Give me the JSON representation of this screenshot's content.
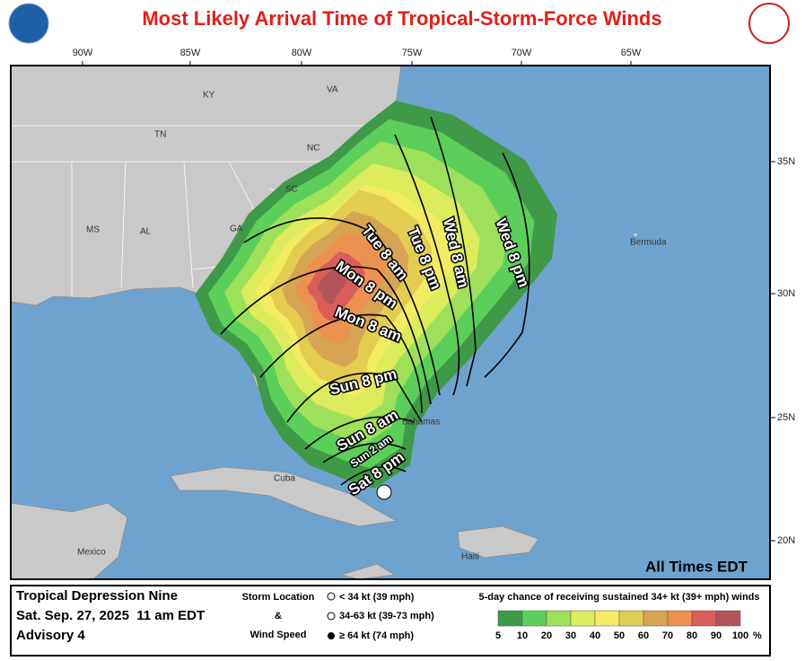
{
  "header": {
    "title": "Most Likely Arrival Time of Tropical-Storm-Force Winds"
  },
  "map": {
    "longitude_labels": [
      "90W",
      "85W",
      "80W",
      "75W",
      "70W",
      "65W"
    ],
    "latitude_labels": [
      "35N",
      "30N",
      "25N",
      "20N"
    ],
    "state_labels": [
      "KY",
      "VA",
      "TN",
      "NC",
      "SC",
      "GA",
      "MS",
      "AL"
    ],
    "place_labels": [
      "Bermuda",
      "Bahamas",
      "Cuba",
      "Mexico",
      "Haiti"
    ],
    "arrival_time_labels": [
      "Wed 8 pm",
      "Wed 8 am",
      "Tue 8 pm",
      "Tue 8 am",
      "Mon 8 pm",
      "Mon 8 am",
      "Sun 8 pm",
      "Sun 8 am",
      "Sun 2 am",
      "Sat 8 pm"
    ],
    "time_zone_note": "All Times EDT"
  },
  "legend": {
    "storm_name": "Tropical Depression Nine",
    "issued": "Sat. Sep. 27, 2025  11 am EDT",
    "advisory": "Advisory 4",
    "storm_location_title": "Storm Location",
    "ampersand": "&",
    "wind_speed_title": "Wind Speed",
    "wind_classes": [
      "< 34 kt (39 mph)",
      "34-63 kt (39-73 mph)",
      "≥ 64 kt (74 mph)"
    ],
    "probability_title": "5-day chance of receiving sustained 34+ kt (39+ mph) winds",
    "probability_levels": [
      5,
      10,
      20,
      30,
      40,
      50,
      60,
      70,
      80,
      90,
      100
    ],
    "unit": "%",
    "colors": [
      "#3f9a48",
      "#5ccf5a",
      "#9fe05a",
      "#dcec5c",
      "#f2ec62",
      "#e2cc52",
      "#d6a452",
      "#ec9150",
      "#d95d5a",
      "#b4545a"
    ]
  }
}
